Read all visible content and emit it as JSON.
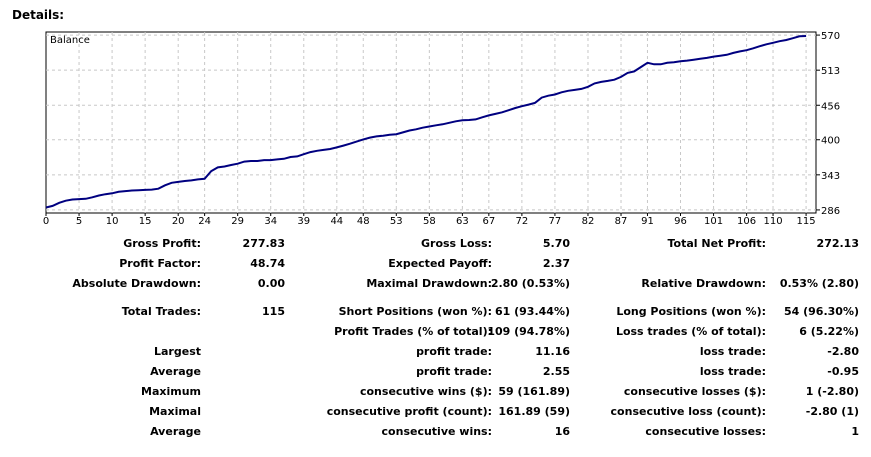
{
  "heading": "Details:",
  "chart_data": {
    "type": "line",
    "title": "Balance",
    "xlabel": "",
    "ylabel": "",
    "x_ticks": [
      0,
      5,
      10,
      15,
      20,
      24,
      29,
      34,
      39,
      44,
      48,
      53,
      58,
      63,
      67,
      72,
      77,
      82,
      87,
      91,
      96,
      101,
      106,
      110,
      115
    ],
    "y_ticks": [
      286,
      343,
      400,
      456,
      513,
      570
    ],
    "xlim": [
      0,
      116.5
    ],
    "ylim": [
      281,
      575
    ],
    "grid": true,
    "color": "#000080",
    "series": [
      {
        "name": "",
        "x": [
          0,
          1,
          2,
          3,
          4,
          5,
          6,
          7,
          8,
          9,
          10,
          11,
          12,
          13,
          14,
          15,
          16,
          17,
          18,
          19,
          20,
          21,
          22,
          23,
          24,
          25,
          26,
          27,
          28,
          29,
          30,
          31,
          32,
          33,
          34,
          35,
          36,
          37,
          38,
          39,
          40,
          41,
          42,
          43,
          44,
          45,
          46,
          47,
          48,
          49,
          50,
          51,
          52,
          53,
          54,
          55,
          56,
          57,
          58,
          59,
          60,
          61,
          62,
          63,
          64,
          65,
          66,
          67,
          68,
          69,
          70,
          71,
          72,
          73,
          74,
          75,
          76,
          77,
          78,
          79,
          80,
          81,
          82,
          83,
          84,
          85,
          86,
          87,
          88,
          89,
          90,
          91,
          92,
          93,
          94,
          95,
          96,
          97,
          98,
          99,
          100,
          101,
          102,
          103,
          104,
          105,
          106,
          107,
          108,
          109,
          110,
          111,
          112,
          113,
          114,
          115
        ],
        "values": [
          290.0,
          292.5,
          297.5,
          301.0,
          303.0,
          303.5,
          304.0,
          306.5,
          309.5,
          311.5,
          313.0,
          315.5,
          316.5,
          317.5,
          318.0,
          318.5,
          319.0,
          320.5,
          326.0,
          330.0,
          331.5,
          333.0,
          334.0,
          335.5,
          336.5,
          349.0,
          355.0,
          356.5,
          359.0,
          361.0,
          364.5,
          365.5,
          365.5,
          367.0,
          367.0,
          368.0,
          369.0,
          372.0,
          373.0,
          376.5,
          380.0,
          382.0,
          383.5,
          385.0,
          387.5,
          390.5,
          393.5,
          397.0,
          400.5,
          403.5,
          405.5,
          406.5,
          408.0,
          409.0,
          412.0,
          415.0,
          417.0,
          419.5,
          421.5,
          423.5,
          425.0,
          427.5,
          430.0,
          431.5,
          432.0,
          433.0,
          436.5,
          439.5,
          442.0,
          444.5,
          448.0,
          451.5,
          454.5,
          457.0,
          460.0,
          468.5,
          471.5,
          473.5,
          477.0,
          479.5,
          481.0,
          482.5,
          486.0,
          491.5,
          494.0,
          495.5,
          497.5,
          502.0,
          508.5,
          511.0,
          518.0,
          525.0,
          522.5,
          522.5,
          525.0,
          526.0,
          527.5,
          528.5,
          530.0,
          531.5,
          533.0,
          535.0,
          536.5,
          538.0,
          541.0,
          543.5,
          545.5,
          548.5,
          552.0,
          555.0,
          557.5,
          560.0,
          562.0,
          565.0,
          568.0,
          568.5
        ]
      }
    ]
  },
  "stats": {
    "gross_profit": {
      "label": "Gross Profit:",
      "value": "277.83"
    },
    "gross_loss": {
      "label": "Gross Loss:",
      "value": "5.70"
    },
    "total_net_profit": {
      "label": "Total Net Profit:",
      "value": "272.13"
    },
    "profit_factor": {
      "label": "Profit Factor:",
      "value": "48.74"
    },
    "expected_payoff": {
      "label": "Expected Payoff:",
      "value": "2.37"
    },
    "absolute_drawdown": {
      "label": "Absolute Drawdown:",
      "value": "0.00"
    },
    "maximal_drawdown": {
      "label": "Maximal Drawdown:",
      "value": "2.80 (0.53%)"
    },
    "relative_drawdown": {
      "label": "Relative Drawdown:",
      "value": "0.53% (2.80)"
    },
    "total_trades": {
      "label": "Total Trades:",
      "value": "115"
    },
    "short_positions": {
      "label": "Short Positions (won %):",
      "value": "61 (93.44%)"
    },
    "long_positions": {
      "label": "Long Positions (won %):",
      "value": "54 (96.30%)"
    },
    "profit_trades": {
      "label": "Profit Trades (% of total):",
      "value": "109 (94.78%)"
    },
    "loss_trades": {
      "label": "Loss trades (% of total):",
      "value": "6 (5.22%)"
    },
    "largest": {
      "label": "Largest",
      "profit_label": "profit trade:",
      "profit_value": "11.16",
      "loss_label": "loss trade:",
      "loss_value": "-2.80"
    },
    "average": {
      "label": "Average",
      "profit_label": "profit trade:",
      "profit_value": "2.55",
      "loss_label": "loss trade:",
      "loss_value": "-0.95"
    },
    "maximum": {
      "label": "Maximum",
      "profit_label": "consecutive wins ($):",
      "profit_value": "59 (161.89)",
      "loss_label": "consecutive losses ($):",
      "loss_value": "1 (-2.80)"
    },
    "maximal": {
      "label": "Maximal",
      "profit_label": "consecutive profit (count):",
      "profit_value": "161.89 (59)",
      "loss_label": "consecutive loss (count):",
      "loss_value": "-2.80 (1)"
    },
    "average_consecutive": {
      "label": "Average",
      "profit_label": "consecutive wins:",
      "profit_value": "16",
      "loss_label": "consecutive losses:",
      "loss_value": "1"
    }
  }
}
